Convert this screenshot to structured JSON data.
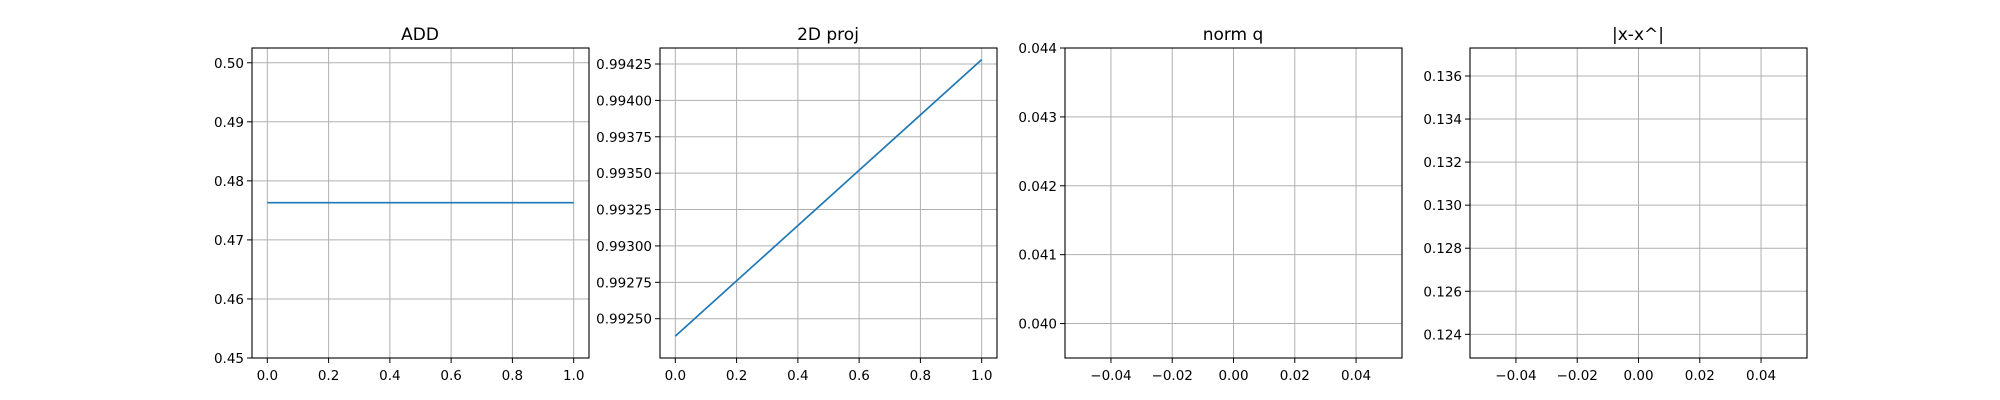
{
  "colors": {
    "series": "#1f77b4"
  },
  "chart_data": [
    {
      "type": "line",
      "title": "ADD",
      "xlabel": "",
      "ylabel": "",
      "grid": true,
      "xlim": [
        -0.05,
        1.05
      ],
      "ylim": [
        0.45,
        0.5025
      ],
      "xticks": [
        0.0,
        0.2,
        0.4,
        0.6,
        0.8,
        1.0
      ],
      "xtick_labels": [
        "0.0",
        "0.2",
        "0.4",
        "0.6",
        "0.8",
        "1.0"
      ],
      "yticks": [
        0.45,
        0.46,
        0.47,
        0.48,
        0.49,
        0.5
      ],
      "ytick_labels": [
        "0.45",
        "0.46",
        "0.47",
        "0.48",
        "0.49",
        "0.50"
      ],
      "series": [
        {
          "x": [
            0.0,
            1.0
          ],
          "y": [
            0.4763,
            0.4763
          ]
        }
      ]
    },
    {
      "type": "line",
      "title": "2D proj",
      "xlabel": "",
      "ylabel": "",
      "grid": true,
      "xlim": [
        -0.05,
        1.05
      ],
      "ylim": [
        0.99223,
        0.99436
      ],
      "xticks": [
        0.0,
        0.2,
        0.4,
        0.6,
        0.8,
        1.0
      ],
      "xtick_labels": [
        "0.0",
        "0.2",
        "0.4",
        "0.6",
        "0.8",
        "1.0"
      ],
      "yticks": [
        0.9925,
        0.99275,
        0.993,
        0.99325,
        0.9935,
        0.99375,
        0.994,
        0.99425
      ],
      "ytick_labels": [
        "0.99250",
        "0.99275",
        "0.99300",
        "0.99325",
        "0.99350",
        "0.99375",
        "0.99400",
        "0.99425"
      ],
      "series": [
        {
          "x": [
            0.0,
            1.0
          ],
          "y": [
            0.99238,
            0.99428
          ]
        }
      ]
    },
    {
      "type": "line",
      "title": "norm q",
      "xlabel": "",
      "ylabel": "",
      "grid": true,
      "xlim": [
        -0.055,
        0.055
      ],
      "ylim": [
        0.0395,
        0.044
      ],
      "xticks": [
        -0.04,
        -0.02,
        0.0,
        0.02,
        0.04
      ],
      "xtick_labels": [
        "−0.04",
        "−0.02",
        "0.00",
        "0.02",
        "0.04"
      ],
      "yticks": [
        0.04,
        0.041,
        0.042,
        0.043,
        0.044
      ],
      "ytick_labels": [
        "0.040",
        "0.041",
        "0.042",
        "0.043",
        "0.044"
      ],
      "series": []
    },
    {
      "type": "line",
      "title": "|x-x^|",
      "xlabel": "",
      "ylabel": "",
      "grid": true,
      "xlim": [
        -0.055,
        0.055
      ],
      "ylim": [
        0.1229,
        0.1373
      ],
      "xticks": [
        -0.04,
        -0.02,
        0.0,
        0.02,
        0.04
      ],
      "xtick_labels": [
        "−0.04",
        "−0.02",
        "0.00",
        "0.02",
        "0.04"
      ],
      "yticks": [
        0.124,
        0.126,
        0.128,
        0.13,
        0.132,
        0.134,
        0.136
      ],
      "ytick_labels": [
        "0.124",
        "0.126",
        "0.128",
        "0.130",
        "0.132",
        "0.134",
        "0.136"
      ],
      "series": []
    }
  ]
}
